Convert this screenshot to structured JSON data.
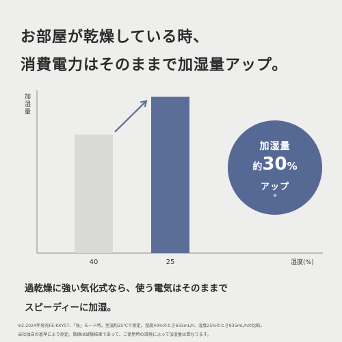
{
  "headline": {
    "line1": "お部屋が乾燥している時、",
    "line2": "消費電力はそのままで加湿量アップ。"
  },
  "chart_data": {
    "type": "bar",
    "ylabel": "加湿量",
    "xlabel": "湿度(%)",
    "categories": [
      "40",
      "25"
    ],
    "values": [
      633,
      835
    ],
    "units": "mL/h",
    "colors": [
      "#d9d9d7",
      "#5b6e98"
    ],
    "arrow_color": "#5b6e98",
    "axis_color": "#8a8a8a",
    "ylim": [
      0,
      870
    ]
  },
  "badge": {
    "line1": "加湿量",
    "prefix": "約",
    "number": "30",
    "percent": "%",
    "line3": "アップ",
    "mark": "※",
    "color": "#566894"
  },
  "body": {
    "line1": "過乾燥に強い気化式なら、使う電気はそのままで",
    "line2": "スピーディーに加湿。"
  },
  "footnote": {
    "line1": "※2:2024年発売FE-KXY07、「強」モード時。室温約25℃で測定。湿度40%のとき633mL/h、湿度25%のとき835mL/hの比較。",
    "line2": "当社独自の基準により測定。数値は試験結果であって、ご使用時の環境によって加湿量は異なります。"
  }
}
